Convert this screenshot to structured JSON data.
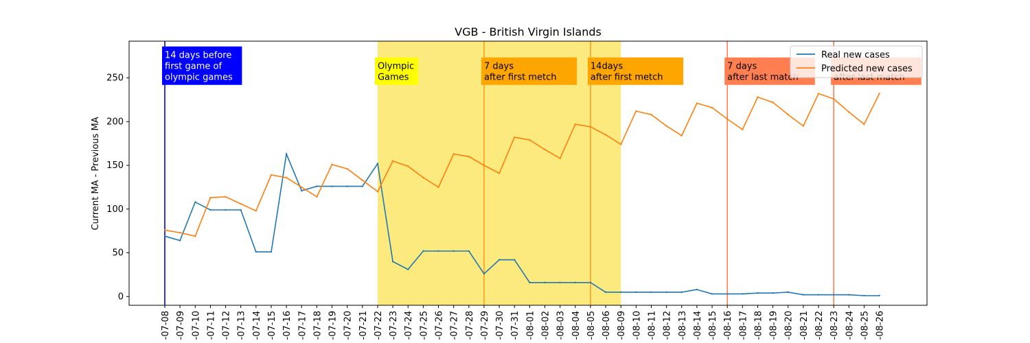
{
  "chart_data": {
    "type": "line",
    "title": "VGB - British Virgin Islands",
    "xlabel": "",
    "ylabel": "Current MA - Previous MA",
    "ylim": [
      -10,
      292
    ],
    "y_ticks": [
      0,
      50,
      100,
      150,
      200,
      250
    ],
    "grid": false,
    "legend_position": "top-right",
    "x": [
      "2021-07-08",
      "2021-07-09",
      "2021-07-10",
      "2021-07-11",
      "2021-07-12",
      "2021-07-13",
      "2021-07-14",
      "2021-07-15",
      "2021-07-16",
      "2021-07-17",
      "2021-07-18",
      "2021-07-19",
      "2021-07-20",
      "2021-07-21",
      "2021-07-22",
      "2021-07-23",
      "2021-07-24",
      "2021-07-25",
      "2021-07-26",
      "2021-07-27",
      "2021-07-28",
      "2021-07-29",
      "2021-07-30",
      "2021-07-31",
      "2021-08-01",
      "2021-08-02",
      "2021-08-03",
      "2021-08-04",
      "2021-08-05",
      "2021-08-06",
      "2021-08-09",
      "2021-08-10",
      "2021-08-11",
      "2021-08-12",
      "2021-08-13",
      "2021-08-14",
      "2021-08-15",
      "2021-08-16",
      "2021-08-17",
      "2021-08-18",
      "2021-08-19",
      "2021-08-20",
      "2021-08-21",
      "2021-08-22",
      "2021-08-23",
      "2021-08-24",
      "2021-08-25",
      "2021-08-26"
    ],
    "x_tick_labels": [
      "-07-08",
      "-07-09",
      "-07-10",
      "-07-11",
      "-07-12",
      "-07-13",
      "-07-14",
      "-07-15",
      "-07-16",
      "-07-17",
      "-07-18",
      "-07-19",
      "-07-20",
      "-07-21",
      "-07-22",
      "-07-23",
      "-07-24",
      "-07-25",
      "-07-26",
      "-07-27",
      "-07-28",
      "-07-29",
      "-07-30",
      "-07-31",
      "-08-01",
      "-08-02",
      "-08-03",
      "-08-04",
      "-08-05",
      "-08-06",
      "-08-09",
      "-08-10",
      "-08-11",
      "-08-12",
      "-08-13",
      "-08-14",
      "-08-15",
      "-08-16",
      "-08-17",
      "-08-18",
      "-08-19",
      "-08-20",
      "-08-21",
      "-08-22",
      "-08-23",
      "-08-24",
      "-08-25",
      "-08-26"
    ],
    "series": [
      {
        "name": "Real new cases",
        "color": "#1f77b4",
        "values": [
          69,
          64,
          108,
          99,
          99,
          99,
          51,
          51,
          163,
          121,
          126,
          126,
          126,
          126,
          152,
          40,
          31,
          52,
          52,
          52,
          52,
          26,
          42,
          42,
          16,
          16,
          16,
          16,
          16,
          5,
          5,
          5,
          5,
          5,
          5,
          8,
          3,
          3,
          3,
          4,
          4,
          5,
          2,
          2,
          2,
          2,
          1,
          1
        ]
      },
      {
        "name": "Predicted new cases",
        "color": "#ff7f0e",
        "values": [
          76,
          73,
          69,
          113,
          114,
          106,
          98,
          139,
          136,
          125,
          114,
          151,
          146,
          133,
          120,
          155,
          149,
          136,
          125,
          163,
          160,
          150,
          141,
          182,
          179,
          168,
          158,
          197,
          194,
          185,
          174,
          212,
          208,
          195,
          184,
          221,
          216,
          203,
          191,
          228,
          222,
          208,
          195,
          232,
          226,
          211,
          197,
          232
        ]
      }
    ],
    "highlight_span": {
      "from": "2021-07-22",
      "to": "2021-08-09",
      "color": "#fdea7e"
    },
    "vertical_lines": [
      {
        "at": "2021-07-08",
        "color": "#0000cc"
      },
      {
        "at": "2021-07-29",
        "color": "#ff9f1c"
      },
      {
        "at": "2021-08-05",
        "color": "#ff9f1c"
      },
      {
        "at": "2021-08-16",
        "color": "#ff7f50"
      },
      {
        "at": "2021-08-23",
        "color": "#ff7f50"
      }
    ],
    "annotations": [
      {
        "at": "2021-07-08",
        "lines": [
          "14 days before",
          "first game of",
          "olympic games"
        ],
        "bg": "#0000ff",
        "fg": "#ffffff"
      },
      {
        "at": "2021-07-22",
        "lines": [
          "Olympic",
          "Games"
        ],
        "bg": "#ffff00",
        "fg": "#000000"
      },
      {
        "at": "2021-07-29",
        "lines": [
          "7 days",
          "after first metch"
        ],
        "bg": "#ffa500",
        "fg": "#000000"
      },
      {
        "at": "2021-08-05",
        "lines": [
          "14days",
          "after first metch"
        ],
        "bg": "#ffa500",
        "fg": "#000000"
      },
      {
        "at": "2021-08-16",
        "lines": [
          "7 days",
          "after last match"
        ],
        "bg": "#ff7f50",
        "fg": "#000000"
      },
      {
        "at": "2021-08-23",
        "lines": [
          "",
          "after last match"
        ],
        "bg": "#ff7f50",
        "fg": "#000000"
      }
    ]
  }
}
